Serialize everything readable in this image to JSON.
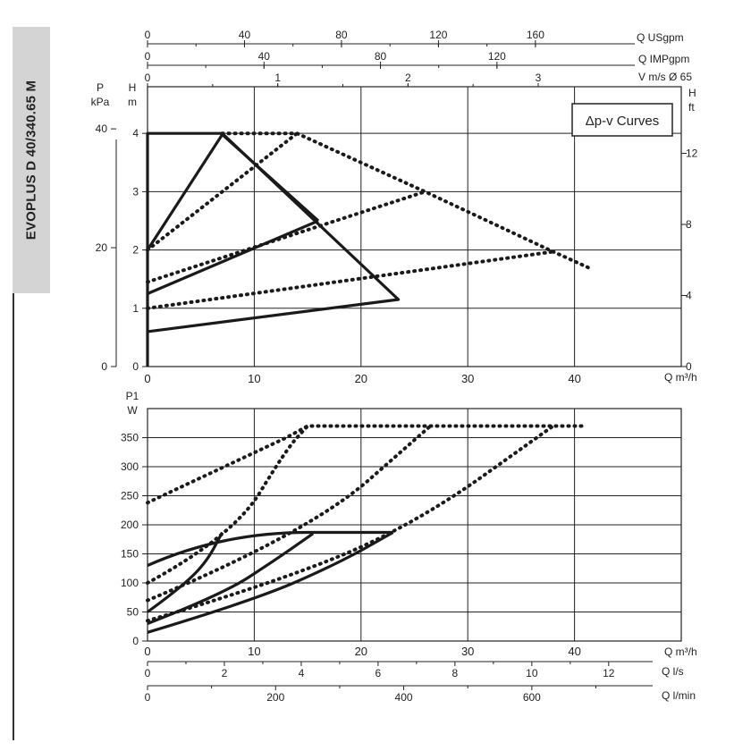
{
  "side_label": "EVOPLUS D 40/340.65 M",
  "chart_data": [
    {
      "type": "line",
      "legend_label": "Δp-v Curves",
      "x_axis": {
        "label": "Q m³/h",
        "ticks": [
          "0",
          "10",
          "20",
          "30",
          "40"
        ],
        "range": [
          0,
          50
        ]
      },
      "left_axis": {
        "label_line1": "H",
        "label_line2": "m",
        "ticks": [
          "0",
          "1",
          "2",
          "3",
          "4"
        ],
        "range": [
          0,
          4.8
        ]
      },
      "pressure_axis": {
        "label_line1": "P",
        "label_line2": "kPa",
        "ticks": [
          "0",
          "20",
          "40"
        ]
      },
      "right_axis": {
        "label_line1": "H",
        "label_line2": "ft",
        "ticks": [
          "0",
          "4",
          "8",
          "12"
        ]
      },
      "top_axes": [
        {
          "label": "Q USgpm",
          "ticks": [
            "0",
            "40",
            "80",
            "120",
            "160"
          ]
        },
        {
          "label": "Q IMPgpm",
          "ticks": [
            "0",
            "40",
            "80",
            "120"
          ]
        },
        {
          "label": "V m/s Ø 65",
          "ticks": [
            "0",
            "1",
            "2",
            "3"
          ]
        }
      ],
      "series": [
        {
          "style": "solid",
          "points": [
            [
              0,
              2.0
            ],
            [
              7,
              3.98
            ],
            [
              16,
              2.5
            ]
          ]
        },
        {
          "style": "solid",
          "points": [
            [
              0,
              0
            ],
            [
              0,
              4.0
            ],
            [
              7,
              4.0
            ],
            [
              23.5,
              1.15
            ],
            [
              0,
              0.6
            ]
          ]
        },
        {
          "style": "solid",
          "points": [
            [
              0,
              1.25
            ],
            [
              16,
              2.5
            ]
          ]
        },
        {
          "style": "dotted",
          "points": [
            [
              0,
              2.0
            ],
            [
              14,
              4.0
            ]
          ]
        },
        {
          "style": "dotted",
          "points": [
            [
              7,
              4.0
            ],
            [
              14,
              4.0
            ],
            [
              26,
              3.0
            ],
            [
              38,
              1.97
            ],
            [
              41.5,
              1.68
            ]
          ]
        },
        {
          "style": "dotted",
          "points": [
            [
              0,
              1.45
            ],
            [
              26,
              3.0
            ]
          ]
        },
        {
          "style": "dotted",
          "points": [
            [
              0,
              1.0
            ],
            [
              38,
              1.97
            ]
          ]
        }
      ]
    },
    {
      "type": "line",
      "x_axis": {
        "label": "Q m³/h",
        "ticks": [
          "0",
          "10",
          "20",
          "30",
          "40"
        ],
        "range": [
          0,
          50
        ]
      },
      "y_axis": {
        "label_line1": "P1",
        "label_line2": "W",
        "ticks": [
          "0",
          "50",
          "100",
          "150",
          "200",
          "250",
          "300",
          "350"
        ],
        "range": [
          0,
          400
        ]
      },
      "bottom_axes": [
        {
          "label": "Q l/s",
          "ticks": [
            "0",
            "2",
            "4",
            "6",
            "8",
            "10",
            "12"
          ]
        },
        {
          "label": "Q l/min",
          "ticks": [
            "0",
            "200",
            "400",
            "600"
          ]
        }
      ],
      "series": [
        {
          "style": "solid",
          "points": [
            [
              0,
              130
            ],
            [
              7,
              187
            ],
            [
              23,
              187
            ]
          ]
        },
        {
          "style": "solid",
          "points": [
            [
              0,
              50
            ],
            [
              3,
              90
            ],
            [
              5.5,
              135
            ],
            [
              7,
              187
            ]
          ]
        },
        {
          "style": "solid",
          "points": [
            [
              0,
              30
            ],
            [
              7,
              80
            ],
            [
              12,
              140
            ],
            [
              15.5,
              185
            ]
          ]
        },
        {
          "style": "solid",
          "points": [
            [
              0,
              15
            ],
            [
              10,
              70
            ],
            [
              18,
              135
            ],
            [
              23,
              187
            ]
          ]
        },
        {
          "style": "dotted",
          "points": [
            [
              0,
              238
            ],
            [
              13,
              350
            ],
            [
              15,
              370
            ],
            [
              41,
              370
            ]
          ]
        },
        {
          "style": "dotted",
          "points": [
            [
              0,
              100
            ],
            [
              8,
              180
            ],
            [
              13,
              330
            ],
            [
              15,
              370
            ]
          ]
        },
        {
          "style": "dotted",
          "points": [
            [
              0,
              70
            ],
            [
              15,
              185
            ],
            [
              26.5,
              370
            ]
          ]
        },
        {
          "style": "dotted",
          "points": [
            [
              0,
              35
            ],
            [
              12,
              100
            ],
            [
              25,
              200
            ],
            [
              38,
              370
            ]
          ]
        }
      ]
    }
  ]
}
